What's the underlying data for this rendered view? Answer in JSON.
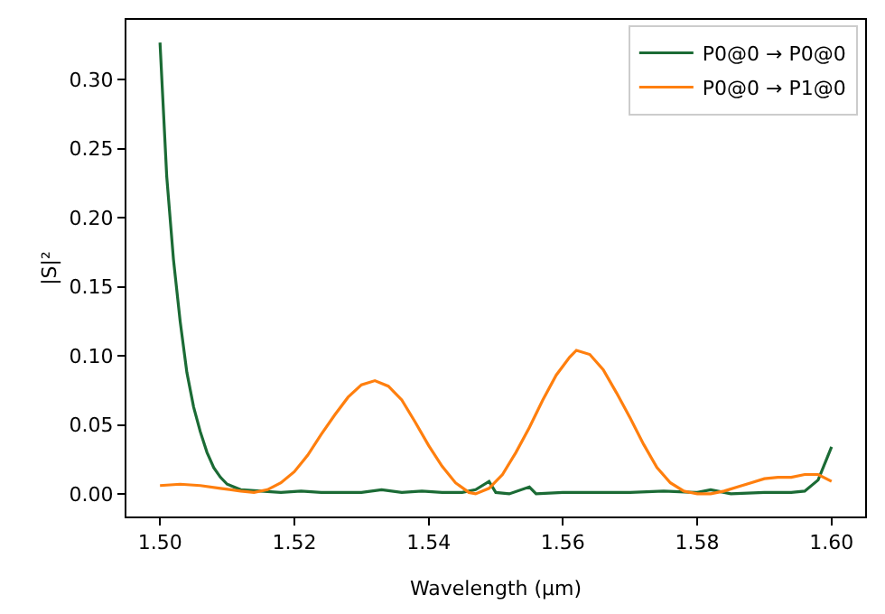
{
  "chart_data": {
    "type": "line",
    "xlabel": "Wavelength (µm)",
    "ylabel": "|S|²",
    "series": [
      {
        "name": "P0@0 → P0@0",
        "color": "#1b6b35",
        "x": [
          1.5,
          1.501,
          1.502,
          1.503,
          1.504,
          1.505,
          1.506,
          1.507,
          1.508,
          1.509,
          1.51,
          1.512,
          1.515,
          1.518,
          1.521,
          1.524,
          1.527,
          1.53,
          1.533,
          1.536,
          1.539,
          1.542,
          1.545,
          1.547,
          1.549,
          1.55,
          1.552,
          1.555,
          1.556,
          1.56,
          1.565,
          1.57,
          1.575,
          1.58,
          1.582,
          1.585,
          1.59,
          1.594,
          1.596,
          1.598,
          1.6
        ],
        "values": [
          0.327,
          0.23,
          0.17,
          0.125,
          0.088,
          0.063,
          0.045,
          0.03,
          0.019,
          0.012,
          0.007,
          0.003,
          0.002,
          0.001,
          0.002,
          0.001,
          0.001,
          0.001,
          0.003,
          0.001,
          0.002,
          0.001,
          0.001,
          0.003,
          0.009,
          0.001,
          0.0,
          0.005,
          0.0,
          0.001,
          0.001,
          0.001,
          0.002,
          0.001,
          0.003,
          0.0,
          0.001,
          0.001,
          0.002,
          0.01,
          0.034
        ]
      },
      {
        "name": "P0@0 → P1@0",
        "color": "#ff7f0e",
        "x": [
          1.5,
          1.503,
          1.506,
          1.509,
          1.512,
          1.514,
          1.516,
          1.518,
          1.52,
          1.522,
          1.524,
          1.526,
          1.528,
          1.53,
          1.532,
          1.534,
          1.536,
          1.538,
          1.54,
          1.542,
          1.544,
          1.546,
          1.547,
          1.549,
          1.551,
          1.553,
          1.555,
          1.557,
          1.559,
          1.561,
          1.562,
          1.564,
          1.566,
          1.568,
          1.57,
          1.572,
          1.574,
          1.576,
          1.578,
          1.58,
          1.582,
          1.584,
          1.586,
          1.588,
          1.59,
          1.592,
          1.594,
          1.596,
          1.598,
          1.6
        ],
        "values": [
          0.006,
          0.007,
          0.006,
          0.004,
          0.002,
          0.001,
          0.003,
          0.008,
          0.016,
          0.028,
          0.043,
          0.057,
          0.07,
          0.079,
          0.082,
          0.078,
          0.068,
          0.052,
          0.035,
          0.02,
          0.008,
          0.001,
          0.0,
          0.004,
          0.014,
          0.03,
          0.048,
          0.068,
          0.086,
          0.099,
          0.104,
          0.101,
          0.09,
          0.073,
          0.055,
          0.036,
          0.019,
          0.008,
          0.002,
          0.0,
          0.0,
          0.002,
          0.005,
          0.008,
          0.011,
          0.012,
          0.012,
          0.014,
          0.014,
          0.009
        ]
      }
    ],
    "xlim": [
      1.495,
      1.605
    ],
    "xticks": [
      {
        "value": 1.5,
        "label": "1.50"
      },
      1.52,
      1.54,
      1.56,
      1.58,
      {
        "value": 1.6,
        "label": "1.60"
      }
    ],
    "ylim": [
      -0.0164,
      0.3434
    ],
    "yticks": [
      {
        "value": 0.0,
        "label": "0.00"
      },
      0.05,
      {
        "value": 0.1,
        "label": "0.10"
      },
      0.15,
      {
        "value": 0.2,
        "label": "0.20"
      },
      0.25,
      {
        "value": 0.3,
        "label": "0.30"
      }
    ],
    "legend": "top right",
    "marker": "none",
    "line_style": "solid"
  }
}
